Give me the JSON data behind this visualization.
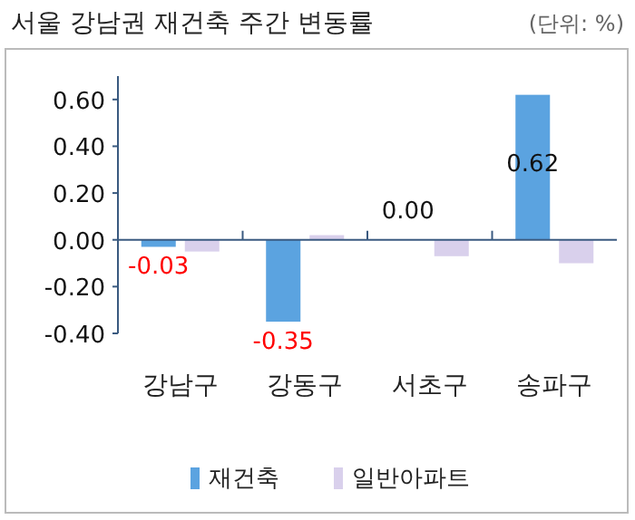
{
  "chart_data": {
    "type": "bar",
    "title": "서울 강남권 재건축 주간 변동률",
    "annotations": [
      "(단위: %)"
    ],
    "categories": [
      "강남구",
      "강동구",
      "서초구",
      "송파구"
    ],
    "series": [
      {
        "name": "재건축",
        "color": "#5ba3e0",
        "values": [
          -0.03,
          -0.35,
          0.0,
          0.62
        ],
        "value_labels": [
          "-0.03",
          "-0.35",
          "0.00",
          "0.62"
        ]
      },
      {
        "name": "일반아파트",
        "color": "#d9d0ec",
        "values": [
          -0.05,
          0.02,
          -0.07,
          -0.1
        ]
      }
    ],
    "ylim": [
      -0.4,
      0.7
    ],
    "yticks": [
      {
        "value": -0.4,
        "label": "-0.40"
      },
      {
        "value": -0.2,
        "label": "-0.20"
      },
      {
        "value": 0,
        "label": "0.00"
      },
      {
        "value": 0.2,
        "label": "0.20"
      },
      {
        "value": 0.4,
        "label": "0.40"
      },
      {
        "value": 0.6,
        "label": "0.60"
      }
    ],
    "ref_lines": [
      {
        "axis": "y",
        "value": 0,
        "color": "#3a5a80"
      }
    ],
    "legend": "bottom"
  }
}
